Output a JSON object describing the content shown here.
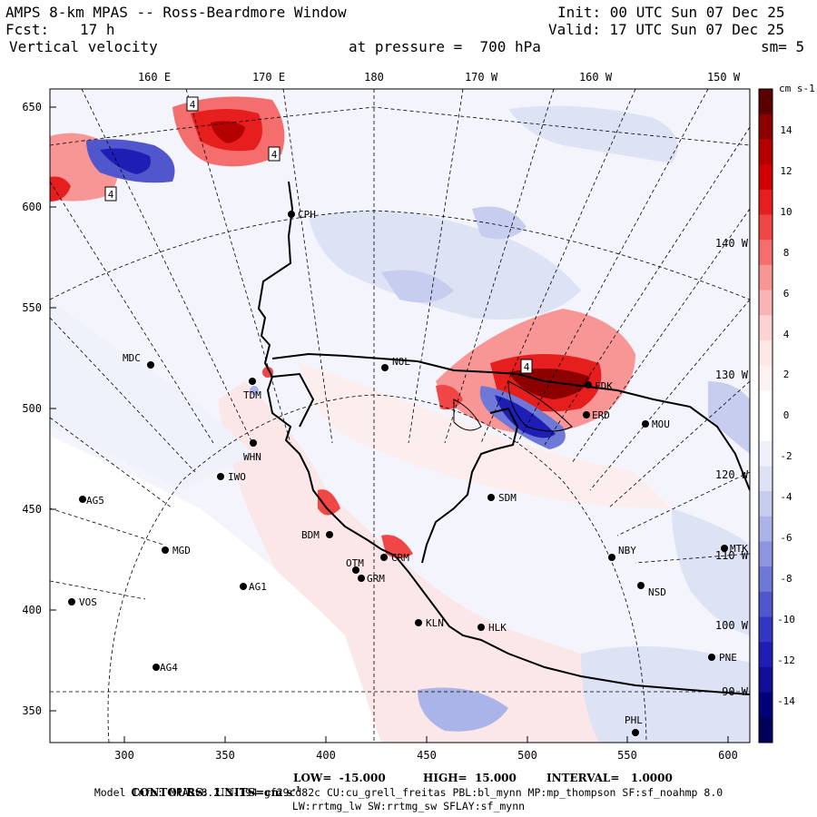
{
  "header": {
    "title": "AMPS 8-km MPAS -- Ross-Beardmore Window",
    "init": "Init: 00 UTC Sun 07 Dec 25",
    "fcst_label": "Fcst:",
    "fcst_value": "17 h",
    "valid": "Valid: 17 UTC Sun 07 Dec 25",
    "field": "Vertical velocity",
    "pressure": "at pressure =  700 hPa",
    "smoothing": "sm= 5"
  },
  "map": {
    "lon_labels": [
      "160 E",
      "170 E",
      "180",
      "170 W",
      "160 W",
      "150 W"
    ],
    "right_lon_labels": [
      "140 W",
      "130 W",
      "120 W",
      "110 W",
      "100 W",
      "90 W"
    ],
    "y_ticks": [
      "650",
      "600",
      "550",
      "500",
      "450",
      "400",
      "350"
    ],
    "x_ticks": [
      "300",
      "350",
      "400",
      "450",
      "500",
      "550",
      "600"
    ],
    "stations": [
      {
        "name": "CPH"
      },
      {
        "name": "MDC"
      },
      {
        "name": "NOL"
      },
      {
        "name": "TDM"
      },
      {
        "name": "WHN"
      },
      {
        "name": "IWO"
      },
      {
        "name": "AG5"
      },
      {
        "name": "BDM"
      },
      {
        "name": "MGD"
      },
      {
        "name": "OTM"
      },
      {
        "name": "CRM"
      },
      {
        "name": "GRM"
      },
      {
        "name": "AG1"
      },
      {
        "name": "VOS"
      },
      {
        "name": "KLN"
      },
      {
        "name": "HLK"
      },
      {
        "name": "SDM"
      },
      {
        "name": "NBY"
      },
      {
        "name": "MTK"
      },
      {
        "name": "NSD"
      },
      {
        "name": "MOU"
      },
      {
        "name": "ERD"
      },
      {
        "name": "FDK"
      },
      {
        "name": "PNE"
      },
      {
        "name": "AG4"
      },
      {
        "name": "PHL"
      }
    ],
    "contour_labels": [
      "4",
      "4",
      "4",
      "4"
    ]
  },
  "colorbar": {
    "units": "cm s-1",
    "labels": [
      "14",
      "12",
      "10",
      "8",
      "6",
      "4",
      "2",
      "0",
      "-2",
      "-4",
      "-6",
      "-8",
      "-10",
      "-12",
      "-14"
    ],
    "colors": [
      "#5a0000",
      "#8c0000",
      "#b40000",
      "#d20000",
      "#e61e1e",
      "#f04646",
      "#f56e6e",
      "#f89696",
      "#fbb4b4",
      "#fcd2d2",
      "#fde8e8",
      "#fdf2f2",
      "#ffffff",
      "#ffffff",
      "#eef0fa",
      "#dde2f5",
      "#c6cdef",
      "#aab4e8",
      "#8c96e0",
      "#6e78d6",
      "#5057cc",
      "#3237c2",
      "#1e1eb4",
      "#0f0f96",
      "#00007a",
      "#00005a"
    ]
  },
  "footer": {
    "contours": "CONTOURS:  UNITS=cm s",
    "contours_sup": "-1",
    "low": "LOW=  -15.000",
    "high": "HIGH=  15.000",
    "interval": "INTERVAL=   1.0000",
    "model_info": "Model Info: MPASv8.2.3-194-gf29cd82c CU:cu_grell_freitas PBL:bl_mynn MP:mp_thompson SF:sf_noahmp 8.0",
    "model_info2": "LW:rrtmg_lw SW:rrtmg_sw SFLAY:sf_mynn"
  }
}
